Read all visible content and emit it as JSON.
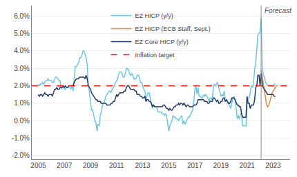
{
  "chart_data": {
    "type": "line",
    "xlim": [
      2004.5,
      2024.3
    ],
    "xticks": [
      2005,
      2007,
      2009,
      2011,
      2013,
      2015,
      2017,
      2019,
      2021,
      2023
    ],
    "ylim": [
      -2.2,
      6.6
    ],
    "yticks": [
      {
        "value": -2.0,
        "label": "-2.0%"
      },
      {
        "value": -1.0,
        "label": "-1.0%"
      },
      {
        "value": 0.0,
        "label": "0.0%"
      },
      {
        "value": 1.0,
        "label": "1.0%"
      },
      {
        "value": 2.0,
        "label": "2.0%"
      },
      {
        "value": 3.0,
        "label": "3.0%"
      },
      {
        "value": 4.0,
        "label": "4.0%"
      },
      {
        "value": 5.0,
        "label": "5.0%"
      },
      {
        "value": 6.0,
        "label": "6.0%"
      }
    ],
    "grid": "y",
    "legend": "upper center",
    "series": [
      {
        "name": "EZ HICP (y/y)",
        "color": "#6EC6E6",
        "x": [
          2005.0,
          2005.08,
          2005.17,
          2005.25,
          2005.33,
          2005.42,
          2005.5,
          2005.58,
          2005.67,
          2005.75,
          2005.83,
          2005.92,
          2006.0,
          2006.08,
          2006.17,
          2006.25,
          2006.33,
          2006.42,
          2006.5,
          2006.58,
          2006.67,
          2006.75,
          2006.83,
          2006.92,
          2007.0,
          2007.08,
          2007.17,
          2007.25,
          2007.33,
          2007.42,
          2007.5,
          2007.58,
          2007.67,
          2007.75,
          2007.83,
          2007.92,
          2008.0,
          2008.08,
          2008.17,
          2008.25,
          2008.33,
          2008.42,
          2008.5,
          2008.58,
          2008.67,
          2008.75,
          2008.83,
          2008.92,
          2009.0,
          2009.08,
          2009.17,
          2009.25,
          2009.33,
          2009.42,
          2009.5,
          2009.58,
          2009.67,
          2009.75,
          2009.83,
          2009.92,
          2010.0,
          2010.08,
          2010.17,
          2010.25,
          2010.33,
          2010.42,
          2010.5,
          2010.58,
          2010.67,
          2010.75,
          2010.83,
          2010.92,
          2011.0,
          2011.08,
          2011.17,
          2011.25,
          2011.33,
          2011.42,
          2011.5,
          2011.58,
          2011.67,
          2011.75,
          2011.83,
          2011.92,
          2012.0,
          2012.08,
          2012.17,
          2012.25,
          2012.33,
          2012.42,
          2012.5,
          2012.58,
          2012.67,
          2012.75,
          2012.83,
          2012.92,
          2013.0,
          2013.08,
          2013.17,
          2013.25,
          2013.33,
          2013.42,
          2013.5,
          2013.58,
          2013.67,
          2013.75,
          2013.83,
          2013.92,
          2014.0,
          2014.08,
          2014.17,
          2014.25,
          2014.33,
          2014.42,
          2014.5,
          2014.58,
          2014.67,
          2014.75,
          2014.83,
          2014.92,
          2015.0,
          2015.08,
          2015.17,
          2015.25,
          2015.33,
          2015.42,
          2015.5,
          2015.58,
          2015.67,
          2015.75,
          2015.83,
          2015.92,
          2016.0,
          2016.08,
          2016.17,
          2016.25,
          2016.33,
          2016.42,
          2016.5,
          2016.58,
          2016.67,
          2016.75,
          2016.83,
          2016.92,
          2017.0,
          2017.08,
          2017.17,
          2017.25,
          2017.33,
          2017.42,
          2017.5,
          2017.58,
          2017.67,
          2017.75,
          2017.83,
          2017.92,
          2018.0,
          2018.08,
          2018.17,
          2018.25,
          2018.33,
          2018.42,
          2018.5,
          2018.58,
          2018.67,
          2018.75,
          2018.83,
          2018.92,
          2019.0,
          2019.08,
          2019.17,
          2019.25,
          2019.33,
          2019.42,
          2019.5,
          2019.58,
          2019.67,
          2019.75,
          2019.83,
          2019.92,
          2020.0,
          2020.08,
          2020.17,
          2020.25,
          2020.33,
          2020.42,
          2020.5,
          2020.58,
          2020.67,
          2020.75,
          2020.83,
          2020.92,
          2021.0,
          2021.08,
          2021.17,
          2021.25,
          2021.33,
          2021.42,
          2021.5,
          2021.58,
          2021.67,
          2021.75,
          2021.83,
          2021.92,
          2022.0,
          2022.08,
          2022.17,
          2022.25,
          2022.33,
          2022.42,
          2022.5,
          2022.58,
          2022.67,
          2022.75,
          2022.83,
          2022.92,
          2023.0,
          2023.08,
          2023.17
        ],
        "values": [
          2.1,
          2.0,
          2.1,
          2.1,
          2.2,
          2.1,
          2.2,
          2.3,
          2.3,
          2.4,
          2.3,
          2.3,
          2.3,
          2.2,
          2.2,
          2.4,
          2.5,
          2.5,
          2.4,
          2.3,
          2.3,
          1.8,
          1.9,
          1.9,
          1.8,
          1.8,
          1.9,
          1.9,
          1.9,
          1.9,
          1.8,
          2.0,
          1.7,
          2.6,
          3.1,
          3.1,
          3.2,
          3.3,
          3.6,
          3.6,
          3.7,
          4.0,
          4.0,
          3.8,
          3.6,
          3.2,
          2.1,
          1.6,
          1.1,
          0.6,
          0.6,
          0.2,
          0.0,
          -0.1,
          -0.6,
          -0.2,
          -0.3,
          0.3,
          0.5,
          0.9,
          1.0,
          1.1,
          1.4,
          1.5,
          1.6,
          1.7,
          1.7,
          1.6,
          1.8,
          1.9,
          2.0,
          2.2,
          2.3,
          2.4,
          2.7,
          2.8,
          2.8,
          2.7,
          2.5,
          2.5,
          2.7,
          3.0,
          3.0,
          2.9,
          2.7,
          2.6,
          2.7,
          2.6,
          2.4,
          2.4,
          2.4,
          2.6,
          2.6,
          2.5,
          2.2,
          2.2,
          2.0,
          1.8,
          1.7,
          1.2,
          1.4,
          1.6,
          1.6,
          1.3,
          1.1,
          0.7,
          0.9,
          0.8,
          0.8,
          0.8,
          0.5,
          0.5,
          0.5,
          0.5,
          0.4,
          0.4,
          0.3,
          0.4,
          0.3,
          -0.2,
          -0.6,
          -0.3,
          -0.1,
          0.0,
          0.3,
          0.2,
          0.2,
          0.1,
          0.1,
          0.0,
          0.1,
          0.2,
          0.3,
          -0.2,
          0.0,
          -0.2,
          -0.1,
          0.1,
          0.2,
          0.2,
          0.4,
          0.5,
          0.6,
          1.1,
          1.8,
          2.0,
          1.5,
          1.9,
          1.4,
          1.4,
          1.3,
          1.3,
          1.5,
          1.4,
          1.5,
          1.4,
          1.3,
          1.1,
          1.3,
          1.3,
          1.2,
          1.9,
          2.1,
          2.0,
          2.1,
          2.2,
          1.9,
          1.6,
          1.4,
          1.5,
          1.4,
          1.7,
          1.2,
          1.2,
          1.0,
          1.0,
          0.8,
          0.7,
          1.0,
          1.3,
          1.4,
          1.2,
          0.7,
          0.1,
          0.3,
          0.1,
          0.4,
          0.4,
          -0.3,
          -0.3,
          -0.3,
          -0.3,
          0.9,
          1.3,
          1.3,
          1.6,
          2.0,
          1.9,
          2.2,
          2.9,
          3.4,
          4.1,
          4.9,
          5.0,
          5.1,
          5.9,
          3.0,
          2.6,
          2.5,
          2.2,
          2.1,
          2.0,
          2.0,
          2.0,
          2.0,
          2.0,
          2.0,
          2.1,
          2.1
        ]
      },
      {
        "name": "EZ HICP (ECB Staff, Sept.)",
        "color": "#E8883A",
        "x": [
          2022.08,
          2022.25,
          2022.42,
          2022.5,
          2022.58,
          2022.67,
          2022.75,
          2022.83,
          2022.92,
          2023.0,
          2023.08,
          2023.17,
          2023.25,
          2023.33
        ],
        "values": [
          2.9,
          2.1,
          1.4,
          0.9,
          0.8,
          0.9,
          1.1,
          1.4,
          1.6,
          1.7,
          1.8,
          1.9,
          2.0,
          2.0
        ]
      },
      {
        "name": "EZ Core HICP (y/y)",
        "color": "#1F3864",
        "x": [
          2005.0,
          2005.08,
          2005.17,
          2005.25,
          2005.33,
          2005.42,
          2005.5,
          2005.58,
          2005.67,
          2005.75,
          2005.83,
          2005.92,
          2006.0,
          2006.08,
          2006.17,
          2006.25,
          2006.33,
          2006.42,
          2006.5,
          2006.58,
          2006.67,
          2006.75,
          2006.83,
          2006.92,
          2007.0,
          2007.08,
          2007.17,
          2007.25,
          2007.33,
          2007.42,
          2007.5,
          2007.58,
          2007.67,
          2007.75,
          2007.83,
          2007.92,
          2008.0,
          2008.08,
          2008.17,
          2008.25,
          2008.33,
          2008.42,
          2008.5,
          2008.58,
          2008.67,
          2008.75,
          2008.83,
          2008.92,
          2009.0,
          2009.08,
          2009.17,
          2009.25,
          2009.33,
          2009.42,
          2009.5,
          2009.58,
          2009.67,
          2009.75,
          2009.83,
          2009.92,
          2010.0,
          2010.08,
          2010.17,
          2010.25,
          2010.33,
          2010.42,
          2010.5,
          2010.58,
          2010.67,
          2010.75,
          2010.83,
          2010.92,
          2011.0,
          2011.08,
          2011.17,
          2011.25,
          2011.33,
          2011.42,
          2011.5,
          2011.58,
          2011.67,
          2011.75,
          2011.83,
          2011.92,
          2012.0,
          2012.08,
          2012.17,
          2012.25,
          2012.33,
          2012.42,
          2012.5,
          2012.58,
          2012.67,
          2012.75,
          2012.83,
          2012.92,
          2013.0,
          2013.08,
          2013.17,
          2013.25,
          2013.33,
          2013.42,
          2013.5,
          2013.58,
          2013.67,
          2013.75,
          2013.83,
          2013.92,
          2014.0,
          2014.08,
          2014.17,
          2014.25,
          2014.33,
          2014.42,
          2014.5,
          2014.58,
          2014.67,
          2014.75,
          2014.83,
          2014.92,
          2015.0,
          2015.08,
          2015.17,
          2015.25,
          2015.33,
          2015.42,
          2015.5,
          2015.58,
          2015.67,
          2015.75,
          2015.83,
          2015.92,
          2016.0,
          2016.08,
          2016.17,
          2016.25,
          2016.33,
          2016.42,
          2016.5,
          2016.58,
          2016.67,
          2016.75,
          2016.83,
          2016.92,
          2017.0,
          2017.08,
          2017.17,
          2017.25,
          2017.33,
          2017.42,
          2017.5,
          2017.58,
          2017.67,
          2017.75,
          2017.83,
          2017.92,
          2018.0,
          2018.08,
          2018.17,
          2018.25,
          2018.33,
          2018.42,
          2018.5,
          2018.58,
          2018.67,
          2018.75,
          2018.83,
          2018.92,
          2019.0,
          2019.08,
          2019.17,
          2019.25,
          2019.33,
          2019.42,
          2019.5,
          2019.58,
          2019.67,
          2019.75,
          2019.83,
          2019.92,
          2020.0,
          2020.08,
          2020.17,
          2020.25,
          2020.33,
          2020.42,
          2020.5,
          2020.58,
          2020.67,
          2020.75,
          2020.83,
          2020.92,
          2021.0,
          2021.08,
          2021.17,
          2021.25,
          2021.33,
          2021.42,
          2021.5,
          2021.58,
          2021.67,
          2021.75,
          2021.83,
          2021.92,
          2022.0,
          2022.08,
          2022.17,
          2022.25,
          2022.33,
          2022.42,
          2022.5,
          2022.58,
          2022.67,
          2022.75,
          2022.83,
          2022.92,
          2023.0,
          2023.08,
          2023.17
        ],
        "values": [
          1.5,
          1.4,
          1.5,
          1.5,
          1.4,
          1.5,
          1.6,
          1.5,
          1.5,
          1.4,
          1.5,
          1.5,
          1.5,
          1.4,
          1.6,
          1.8,
          1.8,
          1.9,
          1.8,
          1.8,
          1.9,
          1.9,
          1.9,
          2.0,
          1.9,
          2.0,
          1.9,
          1.9,
          2.0,
          2.0,
          2.0,
          2.0,
          2.0,
          2.2,
          2.3,
          2.4,
          2.4,
          2.4,
          2.5,
          2.5,
          2.5,
          2.5,
          2.5,
          2.4,
          2.6,
          2.4,
          2.0,
          1.9,
          1.8,
          1.6,
          1.5,
          1.4,
          1.3,
          1.2,
          1.2,
          1.1,
          1.1,
          1.1,
          1.0,
          1.0,
          1.0,
          1.0,
          1.0,
          0.9,
          0.9,
          0.9,
          0.9,
          1.0,
          1.0,
          1.1,
          1.1,
          1.3,
          1.5,
          1.4,
          1.5,
          1.6,
          1.6,
          1.6,
          1.6,
          1.7,
          1.7,
          1.9,
          2.0,
          2.0,
          1.9,
          1.8,
          1.8,
          1.8,
          1.8,
          1.7,
          1.7,
          1.5,
          1.5,
          1.5,
          1.4,
          1.4,
          1.3,
          1.3,
          1.4,
          1.1,
          1.2,
          1.2,
          1.1,
          1.1,
          1.0,
          0.8,
          0.9,
          0.8,
          0.8,
          0.8,
          0.8,
          0.8,
          0.8,
          0.8,
          0.8,
          0.9,
          0.9,
          0.8,
          0.7,
          0.7,
          0.6,
          0.7,
          0.6,
          0.6,
          0.7,
          0.8,
          0.8,
          0.9,
          0.9,
          1.0,
          0.9,
          1.0,
          1.0,
          0.9,
          1.0,
          0.9,
          0.8,
          0.9,
          0.9,
          0.8,
          0.8,
          0.8,
          0.8,
          0.9,
          0.9,
          0.9,
          1.0,
          1.2,
          1.2,
          1.2,
          1.2,
          1.2,
          1.2,
          1.1,
          1.1,
          1.1,
          1.0,
          1.0,
          1.1,
          1.1,
          1.1,
          1.3,
          1.3,
          1.2,
          1.1,
          1.2,
          1.0,
          1.0,
          1.1,
          1.1,
          1.3,
          1.3,
          1.1,
          1.2,
          1.1,
          1.0,
          1.0,
          1.1,
          1.3,
          1.3,
          1.3,
          1.2,
          1.0,
          0.9,
          0.9,
          0.8,
          0.8,
          0.4,
          0.2,
          0.2,
          0.2,
          0.2,
          1.4,
          1.0,
          1.0,
          0.7,
          0.9,
          0.9,
          0.9,
          1.2,
          1.9,
          2.0,
          2.6,
          2.6,
          2.0,
          2.7,
          2.0,
          1.9,
          1.8,
          1.7,
          1.6,
          1.5,
          1.5,
          1.5,
          1.5,
          1.5,
          1.5,
          1.4,
          1.4
        ]
      }
    ],
    "reference_lines": [
      {
        "name": "Inflation target",
        "axis": "y",
        "value": 2.0,
        "color": "#FF0000",
        "line_style": "dashed"
      },
      {
        "axis": "x",
        "value": 2022.08,
        "label": "Forecast",
        "color": "#888888",
        "line_style": "solid"
      }
    ]
  }
}
